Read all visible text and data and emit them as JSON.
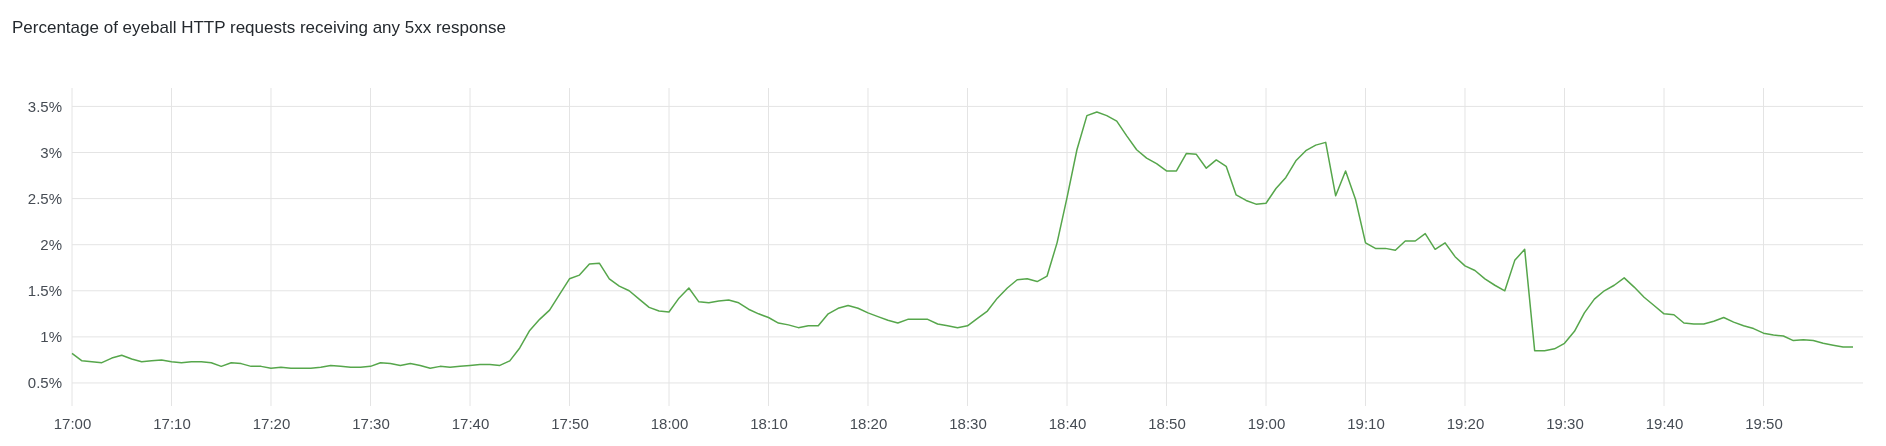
{
  "chart_data": {
    "type": "line",
    "title": "Percentage of eyeball HTTP requests receiving any 5xx response",
    "x": [
      17,
      17.0167,
      17.0333,
      17.05,
      17.0667,
      17.0833,
      17.1,
      17.1167,
      17.1333,
      17.15,
      17.1667,
      17.1833,
      17.2,
      17.2167,
      17.2333,
      17.25,
      17.2667,
      17.2833,
      17.3,
      17.3167,
      17.3333,
      17.35,
      17.3667,
      17.3833,
      17.4,
      17.4167,
      17.4333,
      17.45,
      17.4667,
      17.4833,
      17.5,
      17.5167,
      17.5333,
      17.55,
      17.5667,
      17.5833,
      17.6,
      17.6167,
      17.6333,
      17.65,
      17.6667,
      17.6833,
      17.7,
      17.7167,
      17.7333,
      17.75,
      17.7667,
      17.7833,
      17.8,
      17.8167,
      17.8333,
      17.85,
      17.8667,
      17.8833,
      17.9,
      17.9167,
      17.9333,
      17.95,
      17.9667,
      17.9833,
      18,
      18.0167,
      18.0333,
      18.05,
      18.0667,
      18.0833,
      18.1,
      18.1167,
      18.1333,
      18.15,
      18.1667,
      18.1833,
      18.2,
      18.2167,
      18.2333,
      18.25,
      18.2667,
      18.2833,
      18.3,
      18.3167,
      18.3333,
      18.35,
      18.3667,
      18.3833,
      18.4,
      18.4167,
      18.4333,
      18.45,
      18.4667,
      18.4833,
      18.5,
      18.5167,
      18.5333,
      18.55,
      18.5667,
      18.5833,
      18.6,
      18.6167,
      18.6333,
      18.65,
      18.6667,
      18.6833,
      18.7,
      18.7167,
      18.7333,
      18.75,
      18.7667,
      18.7833,
      18.8,
      18.8167,
      18.8333,
      18.85,
      18.8667,
      18.8833,
      18.9,
      18.9167,
      18.9333,
      18.95,
      18.9667,
      18.9833,
      19,
      19.0167,
      19.0333,
      19.05,
      19.0667,
      19.0833,
      19.1,
      19.1167,
      19.1333,
      19.15,
      19.1667,
      19.1833,
      19.2,
      19.2167,
      19.2333,
      19.25,
      19.2667,
      19.2833,
      19.3,
      19.3167,
      19.3333,
      19.35,
      19.3667,
      19.3833,
      19.4,
      19.4167,
      19.4333,
      19.45,
      19.4667,
      19.4833,
      19.5,
      19.5167,
      19.5333,
      19.55,
      19.5667,
      19.5833,
      19.6,
      19.6167,
      19.6333,
      19.65,
      19.6667,
      19.6833,
      19.7,
      19.7167,
      19.7333,
      19.75,
      19.7667,
      19.7833,
      19.8,
      19.8167,
      19.8333,
      19.85,
      19.8667,
      19.8833,
      19.9,
      19.9167,
      19.9333,
      19.95,
      19.9667,
      19.9833
    ],
    "series": [
      {
        "color": "#56a64b",
        "values": [
          0.82,
          0.74,
          0.73,
          0.72,
          0.77,
          0.8,
          0.76,
          0.73,
          0.74,
          0.75,
          0.73,
          0.72,
          0.73,
          0.73,
          0.72,
          0.68,
          0.72,
          0.71,
          0.68,
          0.68,
          0.66,
          0.67,
          0.66,
          0.66,
          0.66,
          0.67,
          0.69,
          0.68,
          0.67,
          0.67,
          0.68,
          0.72,
          0.71,
          0.69,
          0.71,
          0.69,
          0.66,
          0.68,
          0.67,
          0.68,
          0.69,
          0.7,
          0.7,
          0.69,
          0.74,
          0.88,
          1.07,
          1.19,
          1.29,
          1.46,
          1.63,
          1.67,
          1.79,
          1.8,
          1.63,
          1.55,
          1.5,
          1.41,
          1.32,
          1.28,
          1.27,
          1.42,
          1.53,
          1.38,
          1.37,
          1.39,
          1.4,
          1.37,
          1.3,
          1.25,
          1.21,
          1.15,
          1.13,
          1.1,
          1.12,
          1.12,
          1.25,
          1.31,
          1.34,
          1.31,
          1.26,
          1.22,
          1.18,
          1.15,
          1.19,
          1.19,
          1.19,
          1.14,
          1.12,
          1.1,
          1.12,
          1.2,
          1.28,
          1.42,
          1.53,
          1.62,
          1.63,
          1.6,
          1.66,
          2.02,
          2.51,
          3.03,
          3.4,
          3.44,
          3.4,
          3.34,
          3.18,
          3.03,
          2.94,
          2.88,
          2.8,
          2.8,
          2.99,
          2.98,
          2.83,
          2.92,
          2.85,
          2.54,
          2.48,
          2.44,
          2.45,
          2.61,
          2.73,
          2.91,
          3.02,
          3.08,
          3.11,
          2.53,
          2.8,
          2.49,
          2.02,
          1.96,
          1.96,
          1.94,
          2.04,
          2.04,
          2.12,
          1.95,
          2.02,
          1.87,
          1.77,
          1.72,
          1.63,
          1.56,
          1.5,
          1.83,
          1.95,
          0.85,
          0.85,
          0.87,
          0.93,
          1.06,
          1.26,
          1.41,
          1.5,
          1.56,
          1.64,
          1.54,
          1.43,
          1.34,
          1.25,
          1.24,
          1.15,
          1.14,
          1.14,
          1.17,
          1.21,
          1.16,
          1.12,
          1.09,
          1.04,
          1.02,
          1.01,
          0.96,
          0.97,
          0.96,
          0.93,
          0.91,
          0.89,
          0.89
        ]
      }
    ],
    "xlim": [
      17,
      20
    ],
    "xticks": [
      {
        "value": 17,
        "label": "17:00"
      },
      {
        "value": 17.1667,
        "label": "17:10"
      },
      {
        "value": 17.3333,
        "label": "17:20"
      },
      {
        "value": 17.5,
        "label": "17:30"
      },
      {
        "value": 17.6667,
        "label": "17:40"
      },
      {
        "value": 17.8333,
        "label": "17:50"
      },
      {
        "value": 18,
        "label": "18:00"
      },
      {
        "value": 18.1667,
        "label": "18:10"
      },
      {
        "value": 18.3333,
        "label": "18:20"
      },
      {
        "value": 18.5,
        "label": "18:30"
      },
      {
        "value": 18.6667,
        "label": "18:40"
      },
      {
        "value": 18.8333,
        "label": "18:50"
      },
      {
        "value": 19,
        "label": "19:00"
      },
      {
        "value": 19.1667,
        "label": "19:10"
      },
      {
        "value": 19.3333,
        "label": "19:20"
      },
      {
        "value": 19.5,
        "label": "19:30"
      },
      {
        "value": 19.6667,
        "label": "19:40"
      },
      {
        "value": 19.8333,
        "label": "19:50"
      }
    ],
    "ylim": [
      0.25,
      3.7
    ],
    "yticks": [
      {
        "value": 0.5,
        "label": "0.5%"
      },
      {
        "value": 1,
        "label": "1%"
      },
      {
        "value": 1.5,
        "label": "1.5%"
      },
      {
        "value": 2,
        "label": "2%"
      },
      {
        "value": 2.5,
        "label": "2.5%"
      },
      {
        "value": 3,
        "label": "3%"
      },
      {
        "value": 3.5,
        "label": "3.5%"
      }
    ],
    "grid": true
  }
}
